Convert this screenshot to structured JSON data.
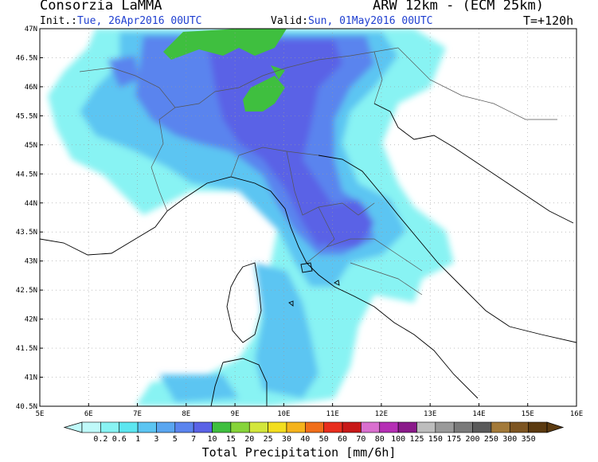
{
  "header": {
    "organization": "Consorzia LaMMA",
    "model": "ARW 12km - (ECM 25km)",
    "init_label": "Init.:",
    "init_value": "Tue, 26Apr2016 00UTC",
    "valid_label": "Valid:",
    "valid_value": "Sun, 01May2016 00UTC",
    "lead_time": "T=+120h"
  },
  "map": {
    "lat_labels": [
      "47N",
      "46.5N",
      "46N",
      "45.5N",
      "45N",
      "44.5N",
      "44N",
      "43.5N",
      "43N",
      "42.5N",
      "42N",
      "41.5N",
      "41N",
      "40.5N"
    ],
    "lon_labels": [
      "5E",
      "6E",
      "7E",
      "8E",
      "9E",
      "10E",
      "11E",
      "12E",
      "13E",
      "14E",
      "15E",
      "16E"
    ],
    "lat_range": [
      40.5,
      47
    ],
    "lon_range": [
      5,
      16
    ]
  },
  "colorbar": {
    "title": "Total Precipitation [mm/6h]",
    "labels": [
      "0.2",
      "0.6",
      "1",
      "3",
      "5",
      "7",
      "10",
      "15",
      "20",
      "25",
      "30",
      "40",
      "50",
      "60",
      "70",
      "80",
      "100",
      "125",
      "150",
      "175",
      "200",
      "250",
      "300",
      "350"
    ],
    "colors": [
      "#bff9f9",
      "#88f3f3",
      "#5ce6f0",
      "#5cc5f2",
      "#5aa6f0",
      "#5b84ee",
      "#5a62e6",
      "#3fbf3f",
      "#86d43a",
      "#d3e63b",
      "#f3de1f",
      "#f5b31c",
      "#f06e1a",
      "#e82d1d",
      "#c81818",
      "#d96fcf",
      "#b52fb5",
      "#8a1a8a",
      "#bdbdbd",
      "#9a9a9a",
      "#7a7a7a",
      "#5a5a5a",
      "#a37a3a",
      "#7d5522",
      "#5b3a10"
    ]
  }
}
